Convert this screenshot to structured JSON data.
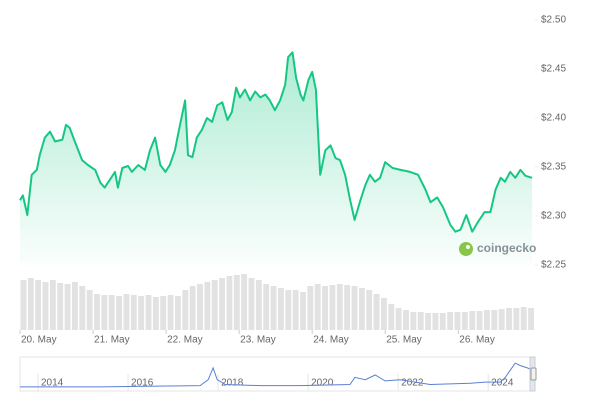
{
  "chart_data": {
    "type": "line",
    "color": "#16c784",
    "x": [
      0,
      0.04,
      0.1,
      0.16,
      0.23,
      0.27,
      0.34,
      0.41,
      0.48,
      0.58,
      0.63,
      0.68,
      0.75,
      0.85,
      0.93,
      1.03,
      1.1,
      1.16,
      1.23,
      1.3,
      1.34,
      1.4,
      1.48,
      1.53,
      1.62,
      1.71,
      1.78,
      1.85,
      1.92,
      1.99,
      2.05,
      2.12,
      2.19,
      2.26,
      2.3,
      2.36,
      2.42,
      2.49,
      2.56,
      2.63,
      2.7,
      2.77,
      2.84,
      2.9,
      2.96,
      3.01,
      3.08,
      3.15,
      3.22,
      3.29,
      3.36,
      3.42,
      3.49,
      3.56,
      3.63,
      3.67,
      3.73,
      3.78,
      3.84,
      3.88,
      3.95,
      4.0,
      4.05,
      4.11,
      4.18,
      4.25,
      4.32,
      4.38,
      4.45,
      4.52,
      4.58,
      4.66,
      4.73,
      4.79,
      4.86,
      4.93,
      5.0,
      5.1,
      5.21,
      5.34,
      5.45,
      5.55,
      5.62,
      5.71,
      5.79,
      5.89,
      5.96,
      6.03,
      6.11,
      6.19,
      6.27,
      6.36,
      6.44,
      6.51,
      6.58,
      6.64,
      6.71,
      6.78,
      6.85,
      6.92,
      7.01
    ],
    "values": [
      2.316,
      2.321,
      2.301,
      2.342,
      2.347,
      2.362,
      2.38,
      2.386,
      2.376,
      2.378,
      2.393,
      2.39,
      2.376,
      2.357,
      2.352,
      2.347,
      2.334,
      2.329,
      2.337,
      2.345,
      2.329,
      2.349,
      2.351,
      2.345,
      2.352,
      2.347,
      2.367,
      2.38,
      2.352,
      2.345,
      2.352,
      2.367,
      2.393,
      2.418,
      2.362,
      2.36,
      2.38,
      2.388,
      2.4,
      2.396,
      2.413,
      2.416,
      2.398,
      2.406,
      2.431,
      2.421,
      2.429,
      2.418,
      2.427,
      2.421,
      2.424,
      2.418,
      2.408,
      2.418,
      2.434,
      2.462,
      2.467,
      2.441,
      2.424,
      2.418,
      2.439,
      2.447,
      2.429,
      2.342,
      2.367,
      2.372,
      2.359,
      2.357,
      2.342,
      2.316,
      2.296,
      2.316,
      2.332,
      2.342,
      2.335,
      2.339,
      2.355,
      2.349,
      2.347,
      2.345,
      2.342,
      2.327,
      2.314,
      2.319,
      2.309,
      2.291,
      2.284,
      2.286,
      2.301,
      2.284,
      2.294,
      2.304,
      2.304,
      2.327,
      2.339,
      2.335,
      2.345,
      2.339,
      2.347,
      2.341,
      2.339
    ],
    "xlim": [
      0,
      7.05
    ],
    "ylim": [
      2.25,
      2.5
    ],
    "yticks": [
      {
        "value": 2.25,
        "label": "$2.25"
      },
      {
        "value": 2.3,
        "label": "$2.30"
      },
      {
        "value": 2.35,
        "label": "$2.35"
      },
      {
        "value": 2.4,
        "label": "$2.40"
      },
      {
        "value": 2.45,
        "label": "$2.45"
      },
      {
        "value": 2.5,
        "label": "$2.50"
      }
    ],
    "xticks": [
      {
        "value": 0,
        "label": "20. May"
      },
      {
        "value": 1,
        "label": "21. May"
      },
      {
        "value": 2,
        "label": "22. May"
      },
      {
        "value": 3,
        "label": "23. May"
      },
      {
        "value": 4,
        "label": "24. May"
      },
      {
        "value": 5,
        "label": "25. May"
      },
      {
        "value": 6,
        "label": "26. May"
      }
    ],
    "volume": {
      "color": "#e2e2e2",
      "values": [
        50,
        52,
        50,
        48,
        50,
        47,
        46,
        48,
        44,
        40,
        36,
        35,
        35,
        34,
        36,
        35,
        34,
        35,
        33,
        34,
        35,
        34,
        40,
        44,
        46,
        48,
        50,
        52,
        54,
        55,
        56,
        52,
        50,
        46,
        44,
        42,
        40,
        40,
        38,
        44,
        46,
        44,
        45,
        46,
        45,
        44,
        42,
        40,
        36,
        32,
        26,
        22,
        20,
        18,
        18,
        17,
        17,
        17,
        18,
        18,
        18,
        19,
        19,
        20,
        20,
        21,
        22,
        22,
        23,
        22
      ]
    },
    "navigator": {
      "color": "#5b7fd6",
      "x": [
        2013.6,
        2015.38,
        2017.6,
        2017.78,
        2017.89,
        2017.98,
        2018.16,
        2018.93,
        2019.82,
        2020.93,
        2021.04,
        2021.27,
        2021.49,
        2021.71,
        2022.04,
        2022.71,
        2023.6,
        2023.93,
        2024.27,
        2024.38,
        2024.49,
        2024.6,
        2024.71,
        2024.87,
        2025.0
      ],
      "values": [
        0.11,
        0.11,
        0.23,
        0.8,
        1.93,
        0.8,
        0.34,
        0.23,
        0.23,
        0.34,
        1.02,
        0.8,
        1.25,
        0.68,
        0.8,
        0.34,
        0.45,
        0.57,
        0.57,
        1.02,
        1.7,
        2.39,
        2.16,
        1.93,
        1.7
      ],
      "xlim": [
        2013.6,
        2025.04
      ],
      "ylim": [
        0,
        2.5
      ],
      "xticks": [
        2014,
        2016,
        2018,
        2020,
        2022,
        2024
      ]
    },
    "watermark": "coingecko"
  }
}
